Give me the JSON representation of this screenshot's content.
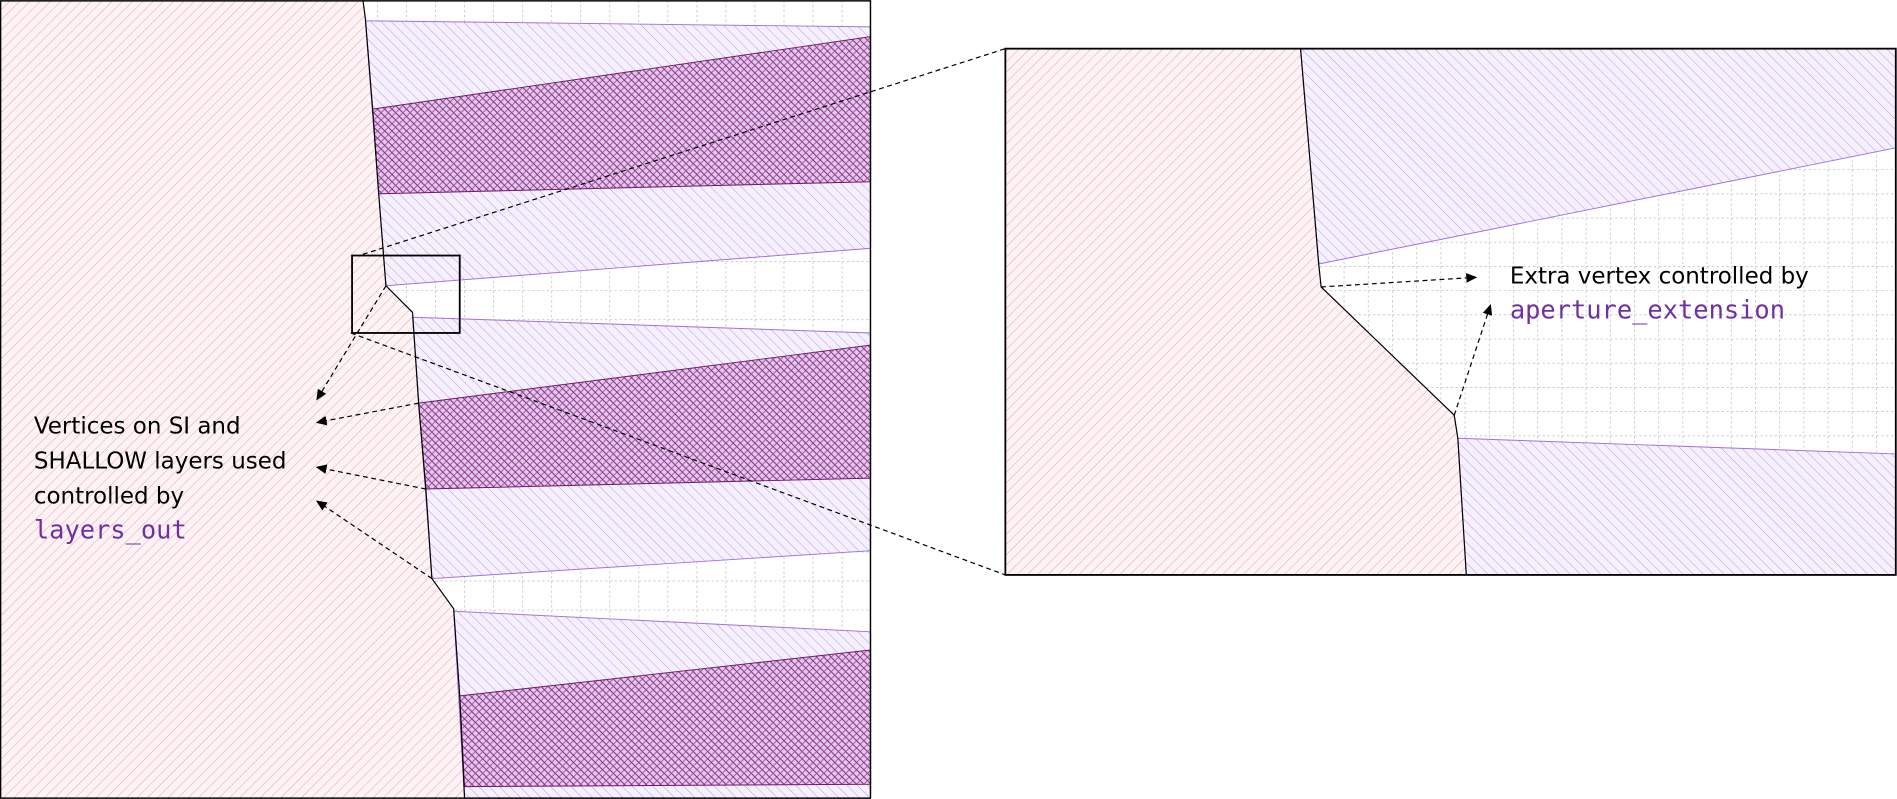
{
  "annotations": {
    "layers": {
      "lines": [
        "Vertices on SI and",
        "SHALLOW layers used",
        "controlled by"
      ],
      "code": "layers_out"
    },
    "aperture": {
      "text": "Extra vertex controlled by",
      "code": "aperture_extension"
    }
  }
}
